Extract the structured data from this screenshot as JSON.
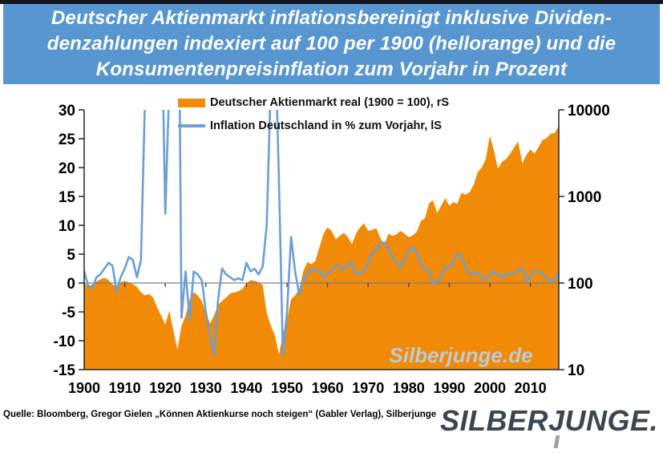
{
  "title": {
    "line1": "Deutscher Aktienmarkt inflationsbereinigt  inklusive Dividen-",
    "line2": "denzahlungen indexiert auf 100 per 1900 (hellorange)  und die",
    "line3": "Konsumentenpreisinflation zum Vorjahr in Prozent"
  },
  "watermark": {
    "text": "Silberjunge.de"
  },
  "source": {
    "text": "Quelle: Bloomberg, Gregor Gielen „Können Aktienkurse  noch steigen“ (Gabler Verlag), Silberjunge"
  },
  "logo": {
    "text_part1": "SILBER",
    "text_j": "J",
    "text_part2": "UNGE."
  },
  "colors": {
    "banner_bg": "#5796D0",
    "area_orange": "#F18A06",
    "line_blue": "#6B9FD6",
    "axis": "#262626",
    "zero_line": "#7F7F7F",
    "tick_label": "#000000"
  },
  "chart_data": {
    "type": "combo (area + line)",
    "x_start_year": 1900,
    "x_end_year": 2017,
    "x_ticks": [
      1900,
      1910,
      1920,
      1930,
      1940,
      1950,
      1960,
      1970,
      1980,
      1990,
      2000,
      2010
    ],
    "left_axis": {
      "scale": "linear",
      "min": -15,
      "max": 30,
      "ticks": [
        30,
        25,
        20,
        15,
        10,
        5,
        0,
        -5,
        -10,
        -15
      ]
    },
    "right_axis": {
      "scale": "log",
      "min": 10,
      "max": 10000,
      "ticks": [
        10000,
        1000,
        100,
        10
      ]
    },
    "grid": "zero line only",
    "legend_position": "top-center, two rows",
    "series": [
      {
        "name": "Deutscher Aktienmarkt real (1900 = 100), rS",
        "type": "area",
        "axis": "right",
        "color": "#F18A06",
        "values": [
          100,
          92,
          96,
          104,
          110,
          115,
          108,
          96,
          92,
          102,
          106,
          102,
          97,
          90,
          78,
          72,
          75,
          68,
          52,
          42,
          33,
          48,
          28,
          17,
          32,
          42,
          65,
          78,
          72,
          62,
          46,
          34,
          42,
          56,
          62,
          68,
          76,
          78,
          80,
          86,
          98,
          108,
          106,
          102,
          95,
          45,
          32,
          25,
          15,
          26,
          38,
          65,
          72,
          85,
          135,
          175,
          165,
          180,
          260,
          370,
          440,
          400,
          320,
          350,
          380,
          340,
          280,
          370,
          440,
          490,
          400,
          410,
          430,
          330,
          280,
          370,
          350,
          365,
          400,
          370,
          340,
          355,
          390,
          520,
          560,
          830,
          900,
          640,
          780,
          960,
          780,
          860,
          820,
          1100,
          1050,
          1120,
          1350,
          1900,
          2150,
          2700,
          5000,
          3400,
          2100,
          2500,
          2700,
          3100,
          3700,
          4300,
          2400,
          3000,
          3500,
          3100,
          3700,
          4500,
          4700,
          5300,
          5400,
          6500
        ]
      },
      {
        "name": "Inflation Deutschland in % zum Vorjahr, lS",
        "type": "line",
        "axis": "left",
        "color": "#6B9FD6",
        "values": [
          2.0,
          -0.5,
          -1.0,
          1.0,
          1.5,
          2.5,
          3.5,
          3.0,
          -1.5,
          1.0,
          2.5,
          4.5,
          4.0,
          1.0,
          4.0,
          32,
          35,
          40,
          35,
          50,
          12,
          35,
          60,
          80,
          -6,
          2,
          -6.5,
          2,
          1.5,
          0.5,
          -5,
          -9,
          -12.5,
          -3,
          2.5,
          1.5,
          1.0,
          0.5,
          0.8,
          0.5,
          3.5,
          2.0,
          2.5,
          1.5,
          2.8,
          10,
          35,
          45,
          18,
          -12.5,
          -5,
          8,
          2,
          -2,
          0.5,
          1.5,
          2.5,
          2,
          2.2,
          1,
          1.5,
          2.3,
          3,
          3,
          2.3,
          3.3,
          3.5,
          1.5,
          1.8,
          1.9,
          3.5,
          5.2,
          5.5,
          7,
          7,
          5.9,
          4.3,
          3.7,
          2.7,
          4.1,
          5.4,
          6.3,
          5.2,
          3.3,
          2.4,
          2.2,
          -0.1,
          0.2,
          1.3,
          2.8,
          2.7,
          3.6,
          5.1,
          4.5,
          2.7,
          1.7,
          1.4,
          1.9,
          0.9,
          0.6,
          1.4,
          2.0,
          1.4,
          1.0,
          1.7,
          1.5,
          1.6,
          2.3,
          2.6,
          0.3,
          1.1,
          2.1,
          2.0,
          1.5,
          0.9,
          0.3,
          0.5,
          1.8
        ]
      }
    ]
  }
}
